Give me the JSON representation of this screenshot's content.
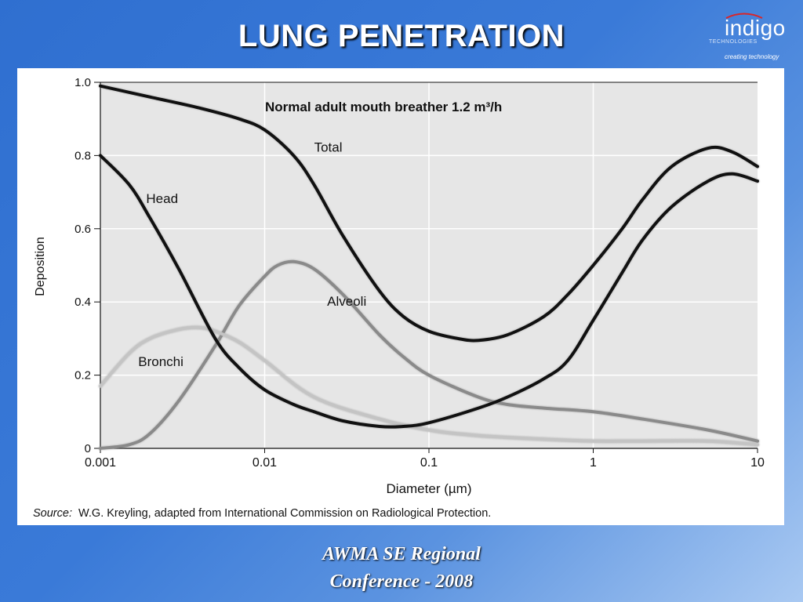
{
  "slide": {
    "title": "LUNG PENETRATION",
    "footer_line1": "AWMA SE Regional",
    "footer_line2": "Conference - 2008"
  },
  "logo": {
    "word": "indigo",
    "sub": "TECHNOLOGIES",
    "tagline": "creating technology",
    "accent_color": "#d9262a"
  },
  "colors": {
    "background": "#2f6fd0",
    "plot_bg": "#e6e6e6",
    "dark_curve": "#111111",
    "gray_curve": "#8a8a8a",
    "light_curve": "#c4c4c4"
  },
  "chart_data": {
    "type": "line",
    "title": "Normal adult mouth breather 1.2 m³/h",
    "xlabel": "Diameter (µm)",
    "ylabel": "Deposition",
    "xscale": "log",
    "xlim": [
      0.001,
      10
    ],
    "ylim": [
      0,
      1.0
    ],
    "grid": true,
    "xticks": [
      {
        "v": 0.001,
        "label": "0.001"
      },
      {
        "v": 0.01,
        "label": "0.01"
      },
      {
        "v": 0.1,
        "label": "0.1"
      },
      {
        "v": 1,
        "label": "1"
      },
      {
        "v": 10,
        "label": "10"
      }
    ],
    "yticks": [
      {
        "v": 0,
        "label": "0"
      },
      {
        "v": 0.2,
        "label": "0.2"
      },
      {
        "v": 0.4,
        "label": "0.4"
      },
      {
        "v": 0.6,
        "label": "0.6"
      },
      {
        "v": 0.8,
        "label": "0.8"
      },
      {
        "v": 1.0,
        "label": "1.0"
      }
    ],
    "series": [
      {
        "name": "Total",
        "color": "#111111",
        "label_at": [
          0.02,
          0.81
        ],
        "x": [
          0.001,
          0.002,
          0.004,
          0.007,
          0.01,
          0.015,
          0.02,
          0.03,
          0.05,
          0.07,
          0.1,
          0.15,
          0.2,
          0.3,
          0.5,
          0.7,
          1,
          1.5,
          2,
          3,
          5,
          7,
          10
        ],
        "y": [
          0.99,
          0.96,
          0.93,
          0.9,
          0.87,
          0.8,
          0.72,
          0.58,
          0.43,
          0.36,
          0.32,
          0.3,
          0.295,
          0.31,
          0.36,
          0.42,
          0.5,
          0.6,
          0.68,
          0.77,
          0.82,
          0.81,
          0.77
        ]
      },
      {
        "name": "Head",
        "color": "#111111",
        "label_at": [
          0.0019,
          0.67
        ],
        "x": [
          0.001,
          0.0015,
          0.002,
          0.003,
          0.005,
          0.007,
          0.01,
          0.015,
          0.02,
          0.03,
          0.05,
          0.07,
          0.1,
          0.2,
          0.3,
          0.5,
          0.7,
          1,
          1.5,
          2,
          3,
          5,
          7,
          10
        ],
        "y": [
          0.8,
          0.72,
          0.63,
          0.49,
          0.3,
          0.22,
          0.16,
          0.12,
          0.1,
          0.075,
          0.06,
          0.06,
          0.07,
          0.11,
          0.14,
          0.19,
          0.24,
          0.35,
          0.48,
          0.57,
          0.66,
          0.73,
          0.75,
          0.73
        ]
      },
      {
        "name": "Alveoli",
        "color": "#8a8a8a",
        "label_at": [
          0.024,
          0.39
        ],
        "x": [
          0.001,
          0.0015,
          0.002,
          0.003,
          0.005,
          0.007,
          0.01,
          0.012,
          0.015,
          0.02,
          0.03,
          0.05,
          0.07,
          0.1,
          0.2,
          0.3,
          0.5,
          1,
          2,
          5,
          10
        ],
        "y": [
          0.0,
          0.01,
          0.04,
          0.13,
          0.28,
          0.39,
          0.47,
          0.5,
          0.51,
          0.49,
          0.42,
          0.31,
          0.25,
          0.2,
          0.14,
          0.12,
          0.11,
          0.1,
          0.08,
          0.05,
          0.02
        ]
      },
      {
        "name": "Bronchi",
        "color": "#c4c4c4",
        "label_at": [
          0.0017,
          0.225
        ],
        "x": [
          0.001,
          0.0015,
          0.002,
          0.003,
          0.004,
          0.005,
          0.007,
          0.01,
          0.02,
          0.05,
          0.1,
          0.2,
          0.5,
          1,
          2,
          5,
          10
        ],
        "y": [
          0.17,
          0.26,
          0.3,
          0.325,
          0.33,
          0.32,
          0.29,
          0.24,
          0.14,
          0.08,
          0.05,
          0.035,
          0.025,
          0.02,
          0.02,
          0.02,
          0.01
        ]
      }
    ]
  },
  "source": {
    "label": "Source:",
    "text": "W.G. Kreyling, adapted from International Commission on Radiological Protection."
  }
}
